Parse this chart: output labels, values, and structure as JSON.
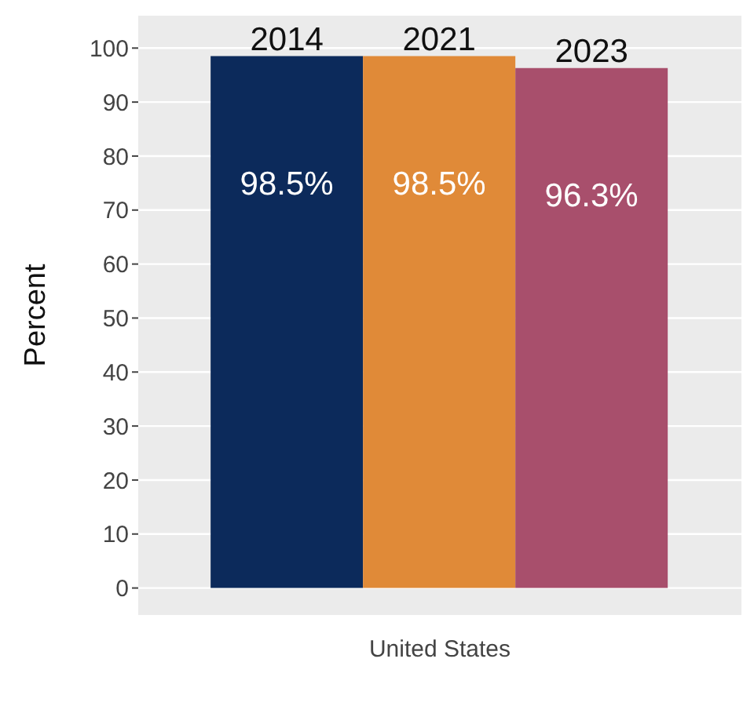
{
  "chart_data": {
    "type": "bar",
    "ylabel": "Percent",
    "categories": [
      "United States"
    ],
    "series": [
      {
        "name": "2014",
        "color": "#0c2a5b",
        "values": [
          98.5
        ],
        "value_labels": [
          "98.5%"
        ]
      },
      {
        "name": "2021",
        "color": "#e08a38",
        "values": [
          98.5
        ],
        "value_labels": [
          "98.5%"
        ]
      },
      {
        "name": "2023",
        "color": "#a84f6c",
        "values": [
          96.3
        ],
        "value_labels": [
          "96.3%"
        ]
      }
    ],
    "ylim": [
      -5,
      106
    ],
    "yticks": [
      0,
      10,
      20,
      30,
      40,
      50,
      60,
      70,
      80,
      90,
      100
    ],
    "grid": "y",
    "legend": false
  }
}
